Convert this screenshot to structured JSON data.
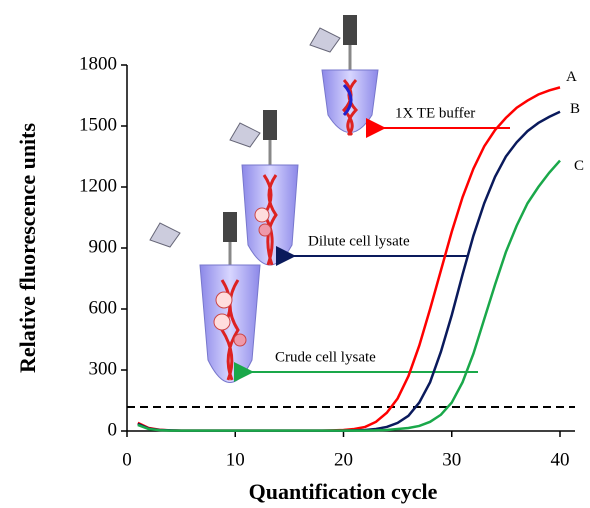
{
  "chart_data": {
    "type": "line",
    "xlabel": "Quantification cycle",
    "ylabel": "Relative fluorescence units",
    "x": [
      1,
      2,
      3,
      4,
      5,
      6,
      7,
      8,
      9,
      10,
      11,
      12,
      13,
      14,
      15,
      16,
      17,
      18,
      19,
      20,
      21,
      22,
      23,
      24,
      25,
      26,
      27,
      28,
      29,
      30,
      31,
      32,
      33,
      34,
      35,
      36,
      37,
      38,
      39,
      40
    ],
    "series": [
      {
        "name": "A",
        "color": "#ff0000",
        "values": [
          40,
          15,
          6,
          3,
          2,
          2,
          2,
          2,
          2,
          2,
          2,
          2,
          2,
          2,
          2,
          2,
          2,
          2,
          3,
          5,
          10,
          20,
          45,
          90,
          160,
          270,
          420,
          600,
          790,
          980,
          1150,
          1290,
          1400,
          1480,
          1540,
          1590,
          1625,
          1655,
          1675,
          1690
        ]
      },
      {
        "name": "B",
        "color": "#0a1a5c",
        "values": [
          35,
          12,
          5,
          3,
          2,
          2,
          2,
          2,
          2,
          2,
          2,
          2,
          2,
          2,
          2,
          2,
          2,
          2,
          2,
          2,
          3,
          5,
          10,
          20,
          40,
          75,
          140,
          240,
          390,
          570,
          770,
          960,
          1120,
          1250,
          1350,
          1420,
          1475,
          1515,
          1545,
          1570
        ]
      },
      {
        "name": "C",
        "color": "#1aa84a",
        "values": [
          30,
          10,
          4,
          2,
          2,
          2,
          2,
          2,
          2,
          2,
          2,
          2,
          2,
          2,
          2,
          2,
          2,
          2,
          2,
          2,
          2,
          2,
          3,
          5,
          10,
          15,
          25,
          45,
          80,
          140,
          240,
          380,
          550,
          720,
          880,
          1010,
          1120,
          1200,
          1270,
          1330
        ]
      }
    ],
    "threshold": 118,
    "annotations": [
      "1X TE buffer",
      "Dilute cell lysate",
      "Crude cell lysate"
    ],
    "xlim": [
      0,
      40
    ],
    "xticks": [
      0,
      10,
      20,
      30,
      40
    ],
    "ylim": [
      0,
      1800
    ],
    "yticks": [
      0,
      300,
      600,
      900,
      1200,
      1500,
      1800
    ]
  }
}
